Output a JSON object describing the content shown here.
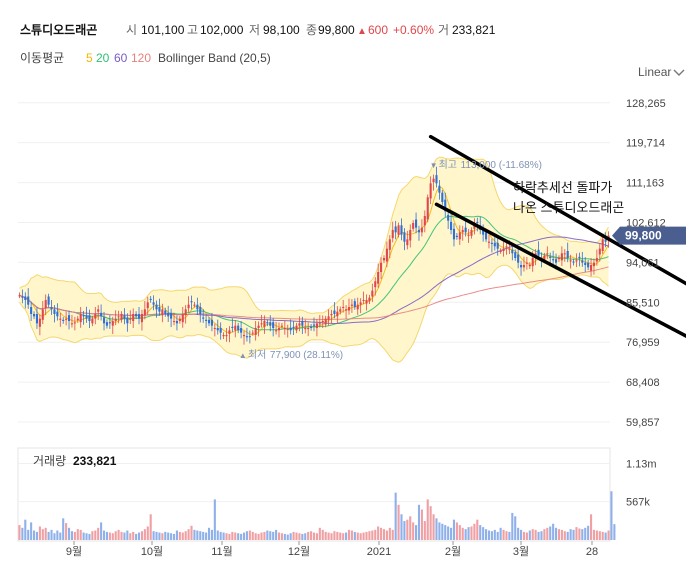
{
  "header": {
    "stock_name": "스튜디오드래곤",
    "open_label": "시",
    "open_value": "101,100",
    "high_label": "고",
    "high_value": "102,000",
    "low_label": "저",
    "low_value": "98,100",
    "close_label": "종",
    "close_value": "99,800",
    "change_arrow": "▲",
    "change_value": "600",
    "change_pct": "+0.60%",
    "volume_label": "거",
    "volume_value": "233,821"
  },
  "indicators": {
    "ma_label": "이동평균",
    "ma_periods": [
      {
        "value": "5",
        "color": "#f2b705"
      },
      {
        "value": "20",
        "color": "#2fbf71"
      },
      {
        "value": "60",
        "color": "#7b5cc4"
      },
      {
        "value": "120",
        "color": "#e8827c"
      }
    ],
    "bollinger_label": "Bollinger Band (20,5)"
  },
  "scale_selector": {
    "label": "Linear",
    "icon": "chevron-down-icon"
  },
  "colors": {
    "up": "#e0474c",
    "down": "#2f6fd6",
    "band_fill": "#fff6cc",
    "band_line": "#f5d76e",
    "price_tag": "#4a5f8f"
  },
  "chart_data": {
    "type": "candlestick",
    "price_axis_ticks": [
      128265,
      119714,
      111163,
      102612,
      94061,
      85510,
      76959,
      68408,
      59857
    ],
    "price_axis_tick_labels": [
      "128,265",
      "119,714",
      "111,163",
      "102,612",
      "94,061",
      "85,510",
      "76,959",
      "68,408",
      "59,857"
    ],
    "ylim": [
      56000,
      131000
    ],
    "x_month_labels": [
      "9월",
      "10월",
      "11월",
      "12월",
      "2021",
      "2월",
      "3월",
      "28"
    ],
    "current_price": 99800,
    "current_price_label": "99,800",
    "high_marker_prefix": "▼",
    "high_marker": {
      "label": "최고",
      "value": 113000,
      "text": "113,000 (-11.68%)"
    },
    "low_marker_prefix": "▲",
    "low_marker": {
      "label": "최저",
      "value": 77900,
      "text": "77,900 (28.11%)"
    },
    "annotation_lines": [
      "하락추세선 돌파가",
      "나온 스튜디오드래곤"
    ],
    "trendlines": [
      {
        "from": {
          "bar": 141,
          "price": 121000
        },
        "to": {
          "bar": 237,
          "price": 86500
        }
      },
      {
        "from": {
          "bar": 143,
          "price": 106500
        },
        "to": {
          "bar": 237,
          "price": 75500
        }
      }
    ],
    "price_series": [
      87000,
      86500,
      86000,
      85000,
      83000,
      82500,
      81000,
      82000,
      84000,
      86000,
      85000,
      84000,
      83000,
      82500,
      82000,
      81500,
      82000,
      81500,
      81000,
      81200,
      82000,
      83000,
      82500,
      82000,
      81500,
      82000,
      83000,
      84000,
      82500,
      81000,
      80500,
      81000,
      81500,
      82000,
      82500,
      83000,
      82000,
      81000,
      82000,
      83000,
      82500,
      82000,
      83000,
      84000,
      85500,
      86000,
      85000,
      84000,
      83500,
      84000,
      83000,
      82500,
      82000,
      81500,
      81000,
      82000,
      83000,
      84000,
      85000,
      85500,
      85000,
      84000,
      83000,
      82000,
      81500,
      81000,
      80500,
      80000,
      79500,
      79000,
      78500,
      78500,
      79500,
      80000,
      80500,
      79500,
      79000,
      78500,
      78000,
      78200,
      79000,
      80000,
      80500,
      81000,
      81500,
      81000,
      80500,
      80000,
      79500,
      80000,
      80500,
      80000,
      79800,
      79500,
      80000,
      80500,
      81000,
      80500,
      80000,
      80000,
      80000,
      80500,
      81000,
      81000,
      81500,
      82000,
      82500,
      83000,
      83000,
      83500,
      84000,
      84500,
      84000,
      84500,
      85000,
      84500,
      85000,
      85500,
      86000,
      86000,
      86500,
      88000,
      90000,
      92000,
      94000,
      95000,
      97000,
      99000,
      101000,
      100500,
      102000,
      100000,
      98500,
      99000,
      101000,
      102500,
      101500,
      100500,
      101500,
      104000,
      108000,
      111000,
      112000,
      111000,
      109000,
      107000,
      105000,
      103000,
      101000,
      99000,
      99500,
      100500,
      101000,
      100500,
      100000,
      101000,
      102000,
      102500,
      101000,
      100000,
      99000,
      98500,
      98000,
      97500,
      97000,
      96500,
      97000,
      97500,
      97000,
      96000,
      95000,
      94000,
      93000,
      93500,
      94000,
      93500,
      95000,
      96000,
      95500,
      94500,
      95500,
      96000,
      95000,
      94500,
      94000,
      95000,
      96000,
      96000,
      95000,
      94500,
      94000,
      94500,
      95000,
      94000,
      93500,
      93000,
      93500,
      94000,
      95000,
      97000,
      99000,
      98500,
      99800
    ],
    "volume_axis_labels": [
      "1.13m",
      "567k"
    ],
    "volume_axis_values": [
      1130000,
      567000
    ],
    "volume_title_label": "거래량",
    "volume_title_value": "233,821",
    "volume_series": [
      220000,
      180000,
      300000,
      150000,
      260000,
      140000,
      120000,
      200000,
      160000,
      180000,
      120000,
      150000,
      100000,
      140000,
      110000,
      320000,
      250000,
      180000,
      130000,
      120000,
      160000,
      150000,
      110000,
      100000,
      90000,
      130000,
      140000,
      180000,
      260000,
      140000,
      120000,
      110000,
      100000,
      130000,
      150000,
      120000,
      110000,
      140000,
      100000,
      120000,
      90000,
      110000,
      130000,
      160000,
      200000,
      380000,
      130000,
      120000,
      110000,
      100000,
      120000,
      110000,
      100000,
      90000,
      140000,
      120000,
      110000,
      130000,
      160000,
      210000,
      150000,
      140000,
      130000,
      120000,
      110000,
      180000,
      150000,
      600000,
      140000,
      120000,
      110000,
      100000,
      90000,
      120000,
      110000,
      100000,
      90000,
      110000,
      130000,
      140000,
      120000,
      100000,
      90000,
      110000,
      120000,
      140000,
      130000,
      120000,
      150000,
      110000,
      100000,
      90000,
      80000,
      100000,
      120000,
      110000,
      100000,
      90000,
      100000,
      120000,
      130000,
      110000,
      100000,
      180000,
      150000,
      120000,
      110000,
      100000,
      130000,
      120000,
      110000,
      100000,
      110000,
      150000,
      140000,
      120000,
      110000,
      100000,
      110000,
      120000,
      130000,
      140000,
      150000,
      200000,
      180000,
      160000,
      140000,
      180000,
      150000,
      700000,
      520000,
      380000,
      280000,
      300000,
      350000,
      260000,
      220000,
      520000,
      450000,
      280000,
      600000,
      500000,
      380000,
      320000,
      260000,
      240000,
      220000,
      200000,
      180000,
      300000,
      260000,
      220000,
      180000,
      160000,
      190000,
      200000,
      240000,
      300000,
      220000,
      190000,
      160000,
      140000,
      130000,
      150000,
      120000,
      180000,
      150000,
      130000,
      120000,
      400000,
      350000,
      180000,
      150000,
      120000,
      110000,
      140000,
      160000,
      150000,
      120000,
      130000,
      160000,
      180000,
      200000,
      240000,
      180000,
      160000,
      150000,
      130000,
      120000,
      160000,
      150000,
      190000,
      170000,
      160000,
      180000,
      210000,
      380000,
      150000,
      140000,
      130000,
      120000,
      110000,
      140000,
      720000,
      233821
    ]
  }
}
